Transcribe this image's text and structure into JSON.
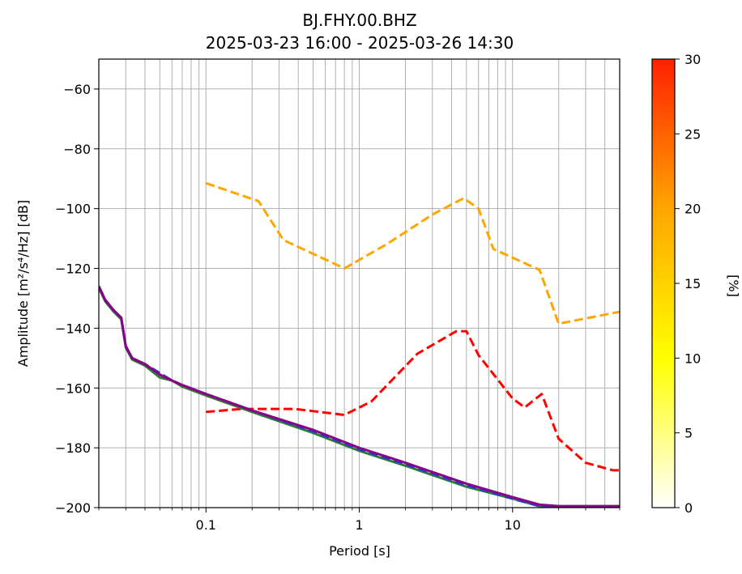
{
  "chart_data": {
    "type": "line",
    "title": "BJ.FHY.00.BHZ",
    "subtitle": "2025-03-23 16:00 - 2025-03-26 14:30",
    "xlabel": "Period [s]",
    "ylabel": "Amplitude [m²/s⁴/Hz] [dB]",
    "x_scale": "log",
    "xlim": [
      0.02,
      50
    ],
    "ylim": [
      -200,
      -50
    ],
    "grid": true,
    "x_ticks": [
      {
        "value": 0.1,
        "label": "0.1"
      },
      {
        "value": 1,
        "label": "1"
      },
      {
        "value": 10,
        "label": "10"
      }
    ],
    "y_ticks": [
      {
        "value": -60,
        "label": "−60"
      },
      {
        "value": -80,
        "label": "−80"
      },
      {
        "value": -100,
        "label": "−100"
      },
      {
        "value": -120,
        "label": "−120"
      },
      {
        "value": -140,
        "label": "−140"
      },
      {
        "value": -160,
        "label": "−160"
      },
      {
        "value": -180,
        "label": "−180"
      },
      {
        "value": -200,
        "label": "−200"
      }
    ],
    "series": [
      {
        "color": "#ffa500",
        "dash": "dashed",
        "x": [
          0.1,
          0.22,
          0.32,
          0.8,
          1.5,
          3.0,
          4.8,
          6.0,
          7.5,
          15.0,
          20.0,
          50.0
        ],
        "y": [
          -91.5,
          -97.5,
          -110.5,
          -120.0,
          -112.0,
          -102.0,
          -96.5,
          -100.0,
          -113.5,
          -120.5,
          -138.5,
          -134.5
        ]
      },
      {
        "color": "#ff0000",
        "dash": "dashed",
        "x": [
          0.1,
          0.17,
          0.38,
          0.8,
          1.2,
          2.4,
          4.3,
          5.0,
          6.0,
          10.0,
          12.0,
          15.5,
          20.0,
          30.0,
          45.0,
          50.0
        ],
        "y": [
          -168.0,
          -167.0,
          -167.0,
          -169.0,
          -164.5,
          -148.5,
          -141.0,
          -141.0,
          -149.0,
          -163.5,
          -166.5,
          -162.0,
          -177.0,
          -185.0,
          -187.5,
          -187.5
        ]
      },
      {
        "color": "#2e7d32",
        "dash": "solid",
        "x": [
          0.02,
          0.022,
          0.025,
          0.028,
          0.03,
          0.033,
          0.04,
          0.05,
          0.06,
          0.07,
          0.1,
          0.2,
          0.5,
          1.0,
          2.0,
          5.0,
          10.0,
          15.0,
          20.0,
          50.0
        ],
        "y": [
          -126.5,
          -131.0,
          -134.5,
          -137.0,
          -146.5,
          -150.5,
          -152.5,
          -156.5,
          -157.5,
          -159.5,
          -162.5,
          -168.0,
          -175.0,
          -181.0,
          -186.0,
          -193.0,
          -197.0,
          -199.5,
          -200.0,
          -200.0
        ]
      },
      {
        "color": "#1f3fd0",
        "dash": "dashed",
        "x": [
          0.02,
          0.022,
          0.025,
          0.028,
          0.03,
          0.033,
          0.04,
          0.05,
          0.06,
          0.07,
          0.1,
          0.2,
          0.5,
          1.0,
          2.0,
          5.0,
          10.0,
          15.0,
          20.0,
          50.0
        ],
        "y": [
          -126.0,
          -130.5,
          -134.0,
          -136.5,
          -146.0,
          -150.0,
          -152.0,
          -155.0,
          -157.5,
          -159.0,
          -162.0,
          -167.5,
          -174.5,
          -180.5,
          -185.5,
          -192.5,
          -197.0,
          -199.5,
          -200.0,
          -200.0
        ]
      },
      {
        "color": "#8b008b",
        "dash": "solid",
        "x": [
          0.02,
          0.022,
          0.025,
          0.028,
          0.03,
          0.033,
          0.04,
          0.05,
          0.06,
          0.07,
          0.1,
          0.2,
          0.5,
          1.0,
          2.0,
          5.0,
          10.0,
          15.0,
          20.0,
          50.0
        ],
        "y": [
          -126.0,
          -130.5,
          -134.0,
          -136.5,
          -146.0,
          -150.0,
          -152.0,
          -155.5,
          -157.5,
          -159.0,
          -162.0,
          -167.5,
          -174.0,
          -180.0,
          -185.0,
          -192.0,
          -196.5,
          -199.0,
          -199.5,
          -199.5
        ]
      }
    ],
    "colorbar": {
      "label": "[%]",
      "range": [
        0,
        30
      ],
      "ticks": [
        {
          "value": 0,
          "label": "0"
        },
        {
          "value": 5,
          "label": "5"
        },
        {
          "value": 10,
          "label": "10"
        },
        {
          "value": 15,
          "label": "15"
        },
        {
          "value": 20,
          "label": "20"
        },
        {
          "value": 25,
          "label": "25"
        },
        {
          "value": 30,
          "label": "30"
        }
      ],
      "colors": [
        "#ffffff",
        "#ffff00",
        "#ffa500",
        "#ff2000"
      ]
    }
  }
}
